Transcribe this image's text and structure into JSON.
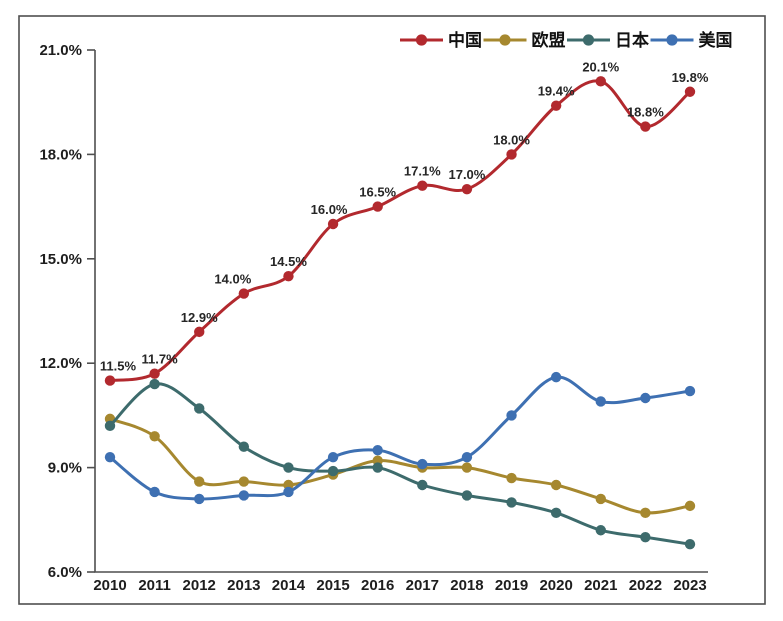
{
  "figure": {
    "background_color": "#ffffff",
    "border_color": "#4f4f4f",
    "axis_color": "#4f4f4f",
    "text_color": "#1e1e1e"
  },
  "chart_data": {
    "type": "line",
    "title": "",
    "xlabel": "",
    "ylabel": "",
    "x": [
      "2010",
      "2011",
      "2012",
      "2013",
      "2014",
      "2015",
      "2016",
      "2017",
      "2018",
      "2019",
      "2020",
      "2021",
      "2022",
      "2023"
    ],
    "ylim": [
      6,
      21
    ],
    "ytick_values": [
      6,
      9,
      12,
      15,
      18,
      21
    ],
    "ytick_labels": [
      "6.0%",
      "9.0%",
      "12.0%",
      "15.0%",
      "18.0%",
      "21.0%"
    ],
    "grid": false,
    "legend_position": "top-right",
    "line_style": "smooth",
    "series": [
      {
        "name": "中国",
        "color": "#b2292e",
        "values": [
          11.5,
          11.7,
          12.9,
          14.0,
          14.5,
          16.0,
          16.5,
          17.1,
          17.0,
          18.0,
          19.4,
          20.1,
          18.8,
          19.8
        ],
        "point_labels": [
          "11.5%",
          "11.7%",
          "12.9%",
          "14.0%",
          "14.5%",
          "16.0%",
          "16.5%",
          "17.1%",
          "17.0%",
          "18.0%",
          "19.4%",
          "20.1%",
          "18.8%",
          "19.8%"
        ],
        "point_label_dx": [
          8,
          5,
          0,
          -11,
          0,
          -4,
          0,
          0,
          0,
          0,
          0,
          0,
          0,
          0
        ]
      },
      {
        "name": "欧盟",
        "color": "#a6882f",
        "values": [
          10.4,
          9.9,
          8.6,
          8.6,
          8.5,
          8.8,
          9.2,
          9.0,
          9.0,
          8.7,
          8.5,
          8.1,
          7.7,
          7.9
        ]
      },
      {
        "name": "日本",
        "color": "#3d6b6c",
        "values": [
          10.2,
          11.4,
          10.7,
          9.6,
          9.0,
          8.9,
          9.0,
          8.5,
          8.2,
          8.0,
          7.7,
          7.2,
          7.0,
          6.8
        ]
      },
      {
        "name": "美国",
        "color": "#3e70b2",
        "values": [
          9.3,
          8.3,
          8.1,
          8.2,
          8.3,
          9.3,
          9.5,
          9.1,
          9.3,
          10.5,
          11.6,
          10.9,
          11.0,
          11.2
        ]
      }
    ]
  }
}
